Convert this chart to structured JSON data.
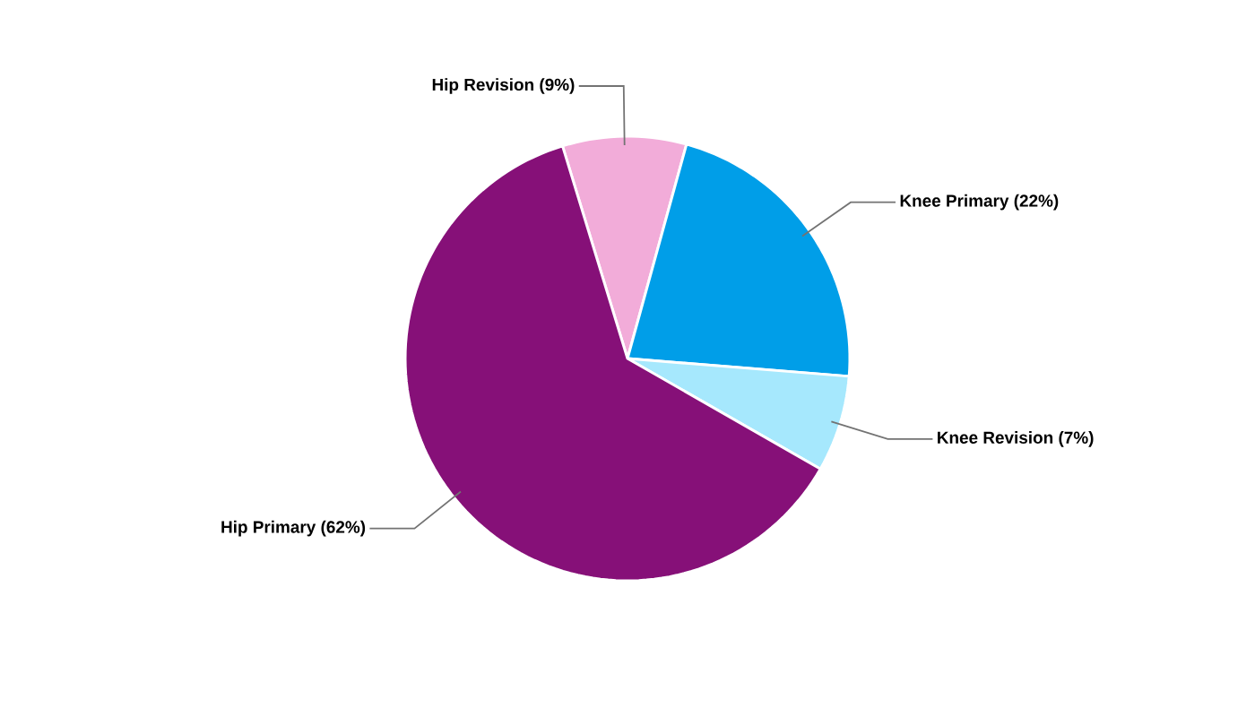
{
  "chart_data": {
    "type": "pie",
    "categories": [
      "Hip Revision",
      "Knee Primary",
      "Knee Revision",
      "Hip Primary"
    ],
    "values": [
      9,
      22,
      7,
      62
    ],
    "value_labels": [
      "(9%)",
      "(22%)",
      "(7%)",
      "(62%)"
    ],
    "colors": [
      "#f2acd9",
      "#009ee8",
      "#a6e8fd",
      "#861078"
    ]
  }
}
